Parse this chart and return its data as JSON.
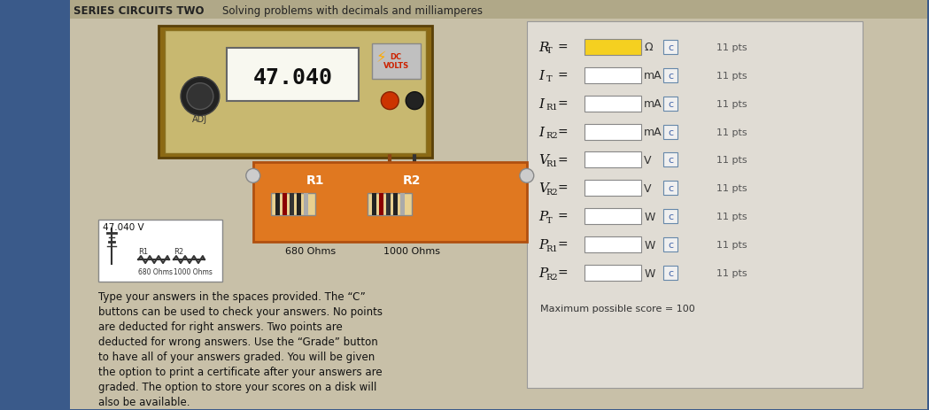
{
  "title_left": "SERIES CIRCUITS TWO",
  "title_right": "Solving problems with decimals and milliamperes",
  "bg_outer": "#3a5a8a",
  "bg_inner": "#c8c0a8",
  "panel_bg": "#d8d0b8",
  "right_panel_bg": "#e8e4dc",
  "header_bg": "#b0a888",
  "meter_display": "47.040",
  "meter_bg": "#d0c8b0",
  "resistor_box_color": "#e07820",
  "voltage_label": "47.040 V",
  "r1_ohms": "680 Ohms",
  "r2_ohms": "1000 Ohms",
  "rows": [
    {
      "label": "R",
      "sub": "T",
      "sep": "=",
      "unit": "Ω",
      "fill": "#f5d020",
      "pts": "11 pts"
    },
    {
      "label": "I",
      "sub": "T",
      "sep": "=",
      "unit": "mA",
      "fill": "#ffffff",
      "pts": "11 pts"
    },
    {
      "label": "I",
      "sub": "R1",
      "sep": "=",
      "unit": "mA",
      "fill": "#ffffff",
      "pts": "11 pts"
    },
    {
      "label": "I",
      "sub": "R2",
      "sep": "=",
      "unit": "mA",
      "fill": "#ffffff",
      "pts": "11 pts"
    },
    {
      "label": "V",
      "sub": "R1",
      "sep": "=",
      "unit": "V",
      "fill": "#ffffff",
      "pts": "11 pts"
    },
    {
      "label": "V",
      "sub": "R2",
      "sep": "=",
      "unit": "V",
      "fill": "#ffffff",
      "pts": "11 pts"
    },
    {
      "label": "P",
      "sub": "T",
      "sep": "=",
      "unit": "W",
      "fill": "#ffffff",
      "pts": "11 pts"
    },
    {
      "label": "P",
      "sub": "R1",
      "sep": "=",
      "unit": "W",
      "fill": "#ffffff",
      "pts": "11 pts"
    },
    {
      "label": "P",
      "sub": "R2",
      "sep": "=",
      "unit": "W",
      "fill": "#ffffff",
      "pts": "11 pts"
    }
  ],
  "body_text_lines": [
    "Type your answers in the spaces provided. The “C”",
    "buttons can be used to check your answers. No points",
    "are deducted for right answers. Two points are",
    "deducted for wrong answers. Use the “Grade” button",
    "to have all of your answers graded. You will be given",
    "the option to print a certificate after your answers are",
    "graded. The option to store your scores on a disk will",
    "also be available."
  ],
  "bottom_text": "Maximum possible score = 100"
}
